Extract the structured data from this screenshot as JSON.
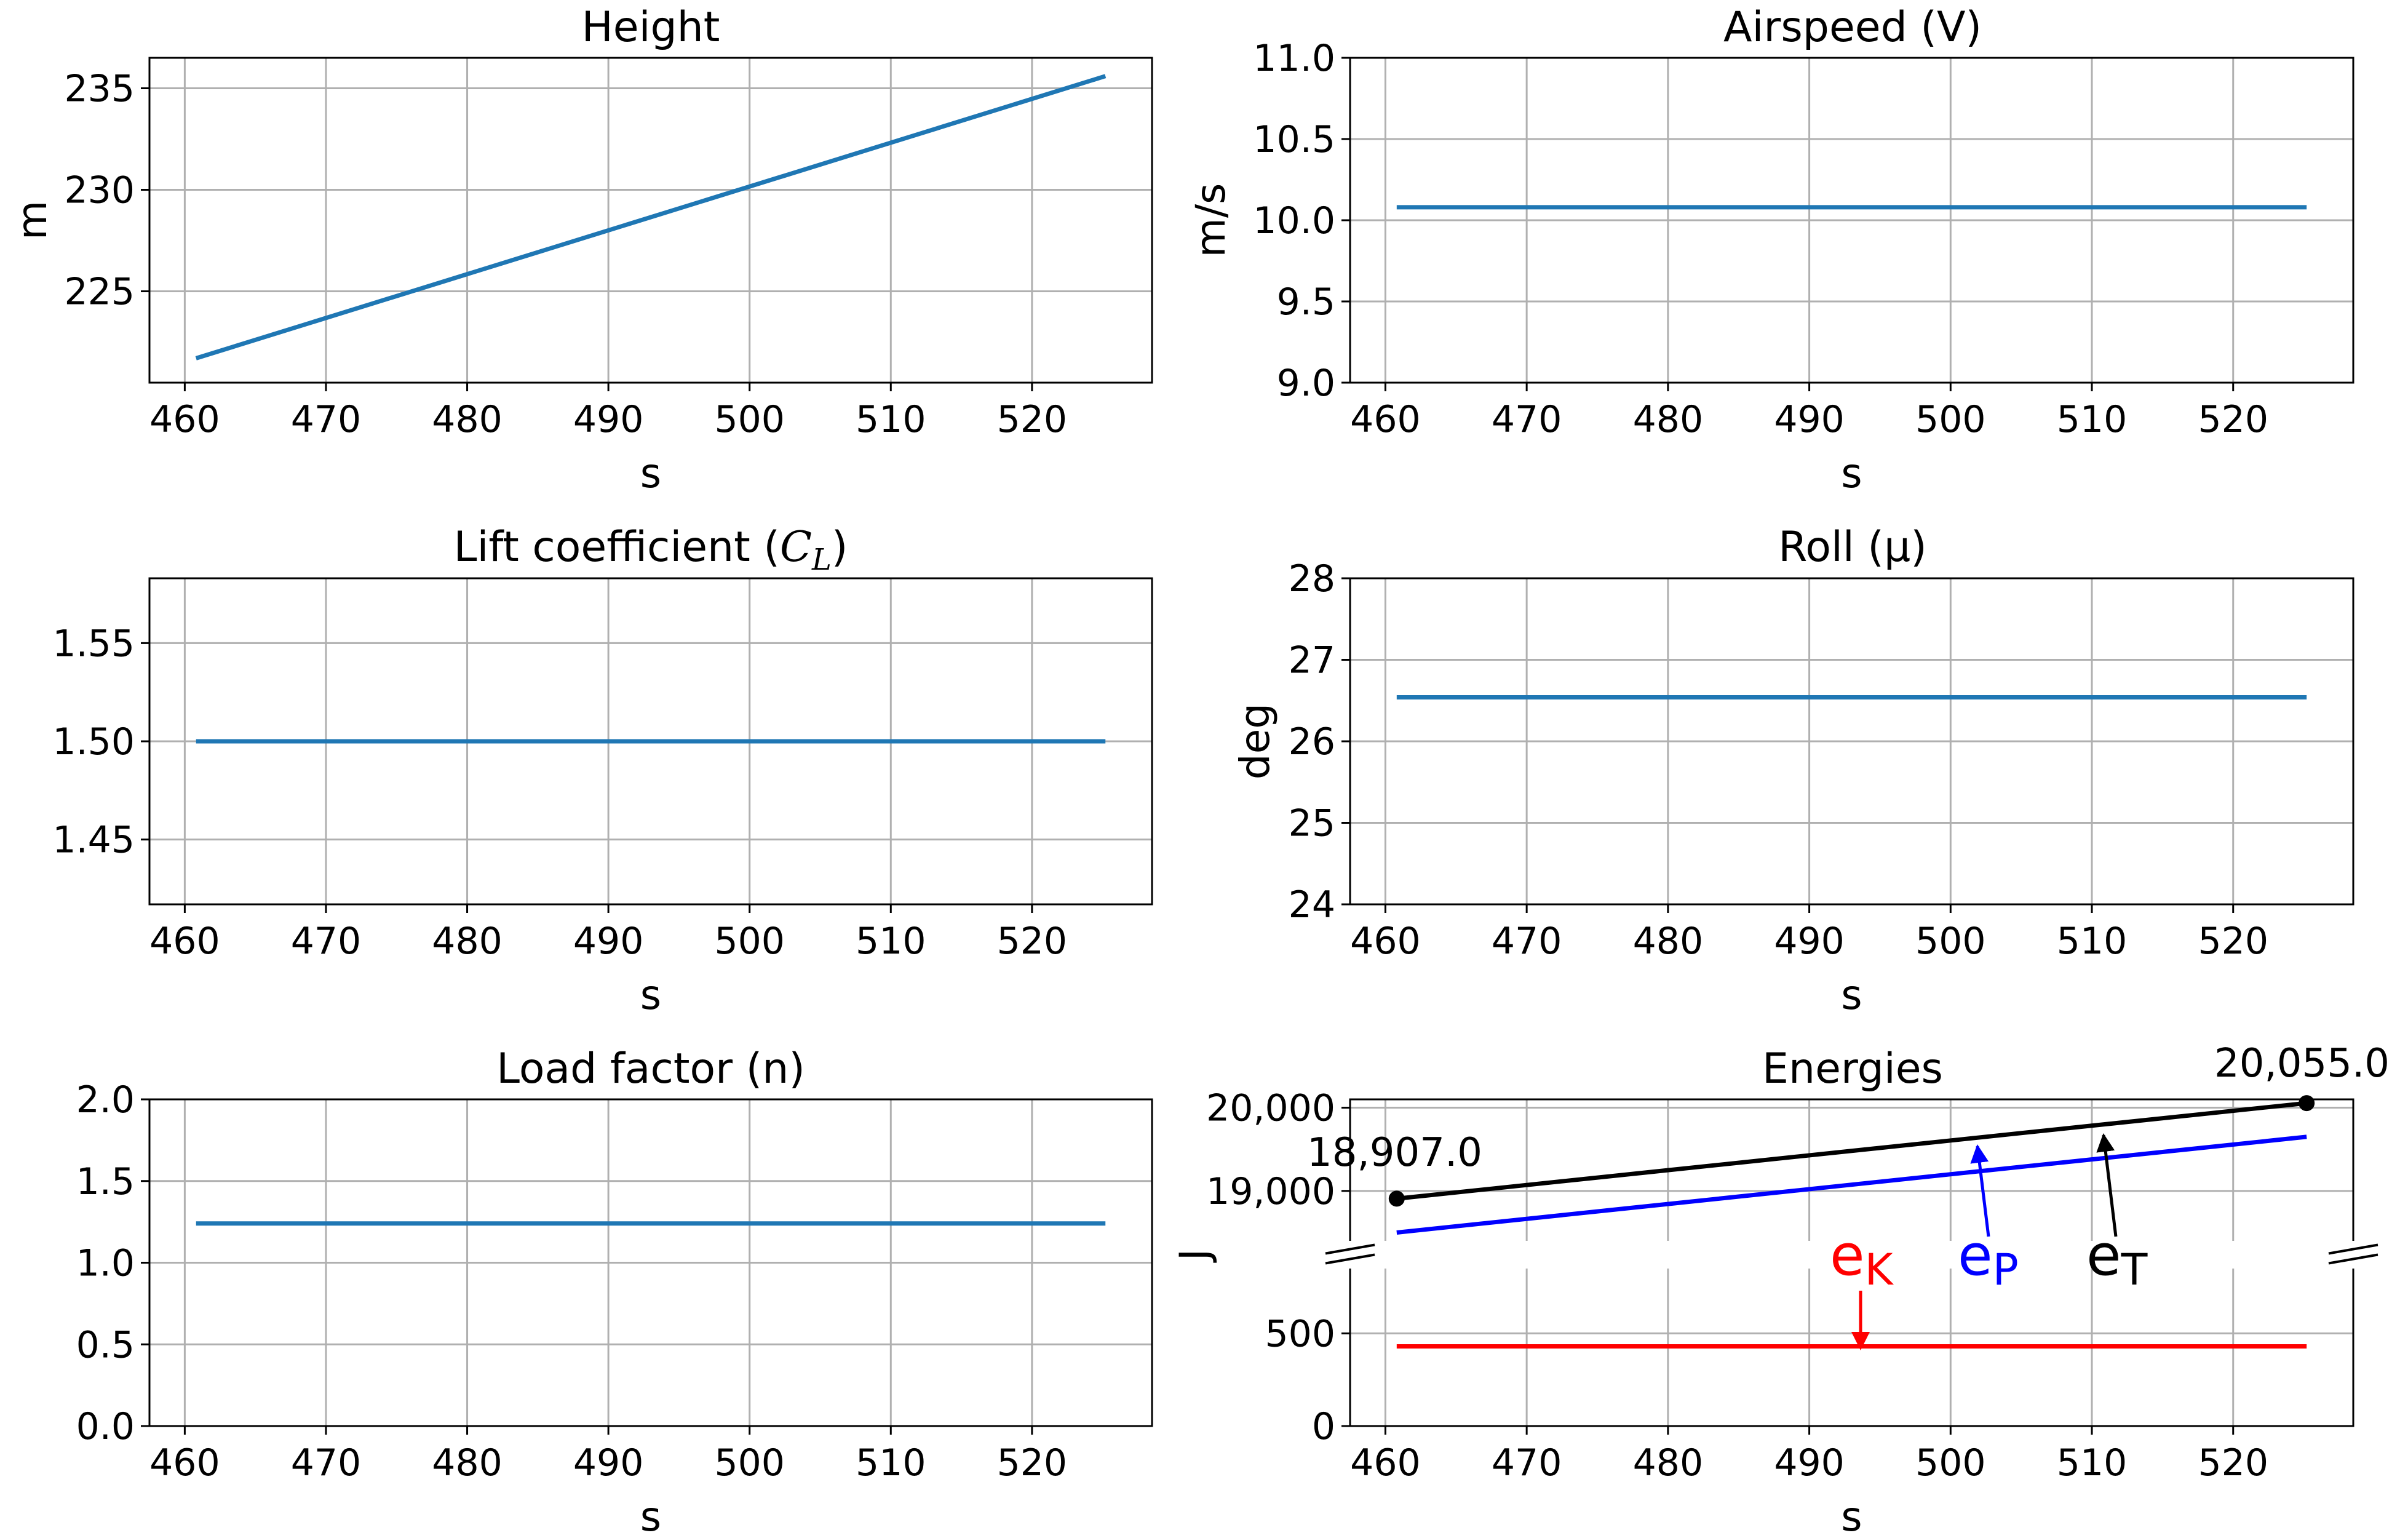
{
  "chart_data": [
    {
      "id": "height",
      "type": "line",
      "title": "Height",
      "xlabel": "s",
      "ylabel": "m",
      "xlim": [
        457.5,
        528.5
      ],
      "ylim": [
        220.5,
        236.5
      ],
      "xticks": [
        460,
        470,
        480,
        490,
        500,
        510,
        520
      ],
      "yticks": [
        225,
        230,
        235
      ],
      "ytick_labels": [
        "225",
        "230",
        "235"
      ],
      "series": [
        {
          "name": "height",
          "color": "#1f77b4",
          "x": [
            460.8,
            525.2
          ],
          "y": [
            221.7,
            235.6
          ]
        }
      ]
    },
    {
      "id": "airspeed",
      "type": "line",
      "title": "Airspeed (V)",
      "xlabel": "s",
      "ylabel": "m/s",
      "xlim": [
        457.5,
        528.5
      ],
      "ylim": [
        9.0,
        11.0
      ],
      "xticks": [
        460,
        470,
        480,
        490,
        500,
        510,
        520
      ],
      "yticks": [
        9.0,
        9.5,
        10.0,
        10.5,
        11.0
      ],
      "ytick_labels": [
        "9.0",
        "9.5",
        "10.0",
        "10.5",
        "11.0"
      ],
      "series": [
        {
          "name": "airspeed",
          "color": "#1f77b4",
          "x": [
            460.8,
            525.2
          ],
          "y": [
            10.08,
            10.08
          ]
        }
      ]
    },
    {
      "id": "lift",
      "type": "line",
      "title": "Lift coefficient (",
      "title_math_base": "C",
      "title_math_sub": "L",
      "title_suffix": ")",
      "xlabel": "s",
      "ylabel": "",
      "xlim": [
        457.5,
        528.5
      ],
      "ylim": [
        1.417,
        1.583
      ],
      "xticks": [
        460,
        470,
        480,
        490,
        500,
        510,
        520
      ],
      "yticks": [
        1.45,
        1.5,
        1.55
      ],
      "ytick_labels": [
        "1.45",
        "1.50",
        "1.55"
      ],
      "series": [
        {
          "name": "lift",
          "color": "#1f77b4",
          "x": [
            460.8,
            525.2
          ],
          "y": [
            1.5,
            1.5
          ]
        }
      ]
    },
    {
      "id": "roll",
      "type": "line",
      "title": "Roll (μ)",
      "xlabel": "s",
      "ylabel": "deg",
      "xlim": [
        457.5,
        528.5
      ],
      "ylim": [
        24,
        28
      ],
      "xticks": [
        460,
        470,
        480,
        490,
        500,
        510,
        520
      ],
      "yticks": [
        24,
        25,
        26,
        27,
        28
      ],
      "ytick_labels": [
        "24",
        "25",
        "26",
        "27",
        "28"
      ],
      "series": [
        {
          "name": "roll",
          "color": "#1f77b4",
          "x": [
            460.8,
            525.2
          ],
          "y": [
            26.54,
            26.54
          ]
        }
      ]
    },
    {
      "id": "load",
      "type": "line",
      "title": "Load factor (n)",
      "xlabel": "s",
      "ylabel": "",
      "xlim": [
        457.5,
        528.5
      ],
      "ylim": [
        0.0,
        2.0
      ],
      "xticks": [
        460,
        470,
        480,
        490,
        500,
        510,
        520
      ],
      "yticks": [
        0.0,
        0.5,
        1.0,
        1.5,
        2.0
      ],
      "ytick_labels": [
        "0.0",
        "0.5",
        "1.0",
        "1.5",
        "2.0"
      ],
      "series": [
        {
          "name": "load",
          "color": "#1f77b4",
          "x": [
            460.8,
            525.2
          ],
          "y": [
            1.24,
            1.24
          ]
        }
      ]
    },
    {
      "id": "energies",
      "type": "line",
      "title": "Energies",
      "xlabel": "s",
      "ylabel": "J",
      "xlim": [
        457.5,
        528.5
      ],
      "broken_axis": true,
      "ylim_upper": [
        18400,
        20100
      ],
      "ylim_lower": [
        0,
        850
      ],
      "xticks": [
        460,
        470,
        480,
        490,
        500,
        510,
        520
      ],
      "yticks_upper": [
        19000,
        20000
      ],
      "ytick_labels_upper": [
        "19,000",
        "20,000"
      ],
      "yticks_lower": [
        0,
        500
      ],
      "ytick_labels_lower": [
        "0",
        "500"
      ],
      "series": [
        {
          "name": "e_T",
          "color": "#000000",
          "panel": "upper",
          "x": [
            460.8,
            525.2
          ],
          "y": [
            18907.0,
            20055.0
          ]
        },
        {
          "name": "e_P",
          "color": "#0000ff",
          "panel": "upper",
          "x": [
            460.8,
            525.2
          ],
          "y": [
            18500,
            19650
          ]
        },
        {
          "name": "e_K",
          "color": "#ff0000",
          "panel": "lower",
          "x": [
            460.8,
            525.2
          ],
          "y": [
            430,
            430
          ]
        }
      ],
      "point_labels": [
        {
          "x": 460.8,
          "y": 18907.0,
          "label": "18,907.0"
        },
        {
          "x": 525.2,
          "y": 20055.0,
          "label": "20,055.0"
        }
      ],
      "annotations": [
        {
          "base": "e",
          "sub": "K",
          "color": "#ff0000"
        },
        {
          "base": "e",
          "sub": "P",
          "color": "#0000ff"
        },
        {
          "base": "e",
          "sub": "T",
          "color": "#000000"
        }
      ]
    }
  ]
}
